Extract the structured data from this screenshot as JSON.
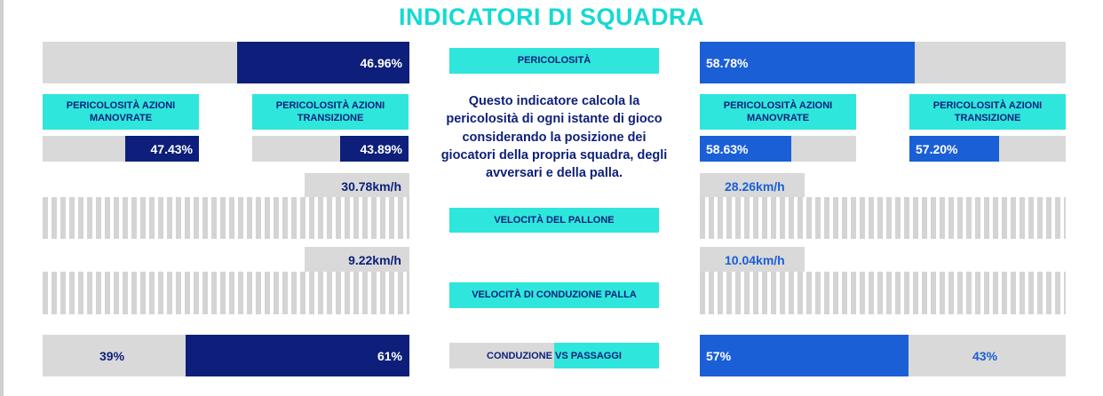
{
  "title": "INDICATORI DI SQUADRA",
  "colors": {
    "accent": "#2ee6dc",
    "title": "#14d9d3",
    "home": "#0d1f7a",
    "away": "#1a5fd6",
    "track": "#d9d9d9"
  },
  "pericolosita": {
    "label": "PERICOLOSITÀ",
    "home_value": "46.96%",
    "home_fraction": 0.4696,
    "away_value": "58.78%",
    "away_fraction": 0.5878,
    "description": "Questo indicatore calcola la pericolosità di ogni istante di gioco considerando la posizione dei giocatori della propria squadra, degli avversari e della palla."
  },
  "sub_labels": {
    "manovrate": "PERICOLOSITÀ AZIONI MANOVRATE",
    "transizione": "PERICOLOSITÀ AZIONI TRANSIZIONE"
  },
  "sub_values": {
    "home_manovrate": "47.43%",
    "home_manovrate_fraction": 0.4743,
    "home_transizione": "43.89%",
    "home_transizione_fraction": 0.4389,
    "away_manovrate": "58.63%",
    "away_manovrate_fraction": 0.5863,
    "away_transizione": "57.20%",
    "away_transizione_fraction": 0.572
  },
  "velocita_pallone": {
    "label": "VELOCITÀ DEL PALLONE",
    "home_value": "30.78km/h",
    "away_value": "28.26km/h"
  },
  "velocita_conduzione": {
    "label": "VELOCITÀ DI CONDUZIONE PALLA",
    "home_value": "9.22km/h",
    "away_value": "10.04km/h"
  },
  "conduzione_passaggi": {
    "label": "CONDUZIONE VS PASSAGGI",
    "home_conduzione": "39%",
    "home_passaggi": "61%",
    "home_passaggi_fraction": 0.61,
    "away_conduzione": "57%",
    "away_passaggi": "43%",
    "away_conduzione_fraction": 0.57
  }
}
